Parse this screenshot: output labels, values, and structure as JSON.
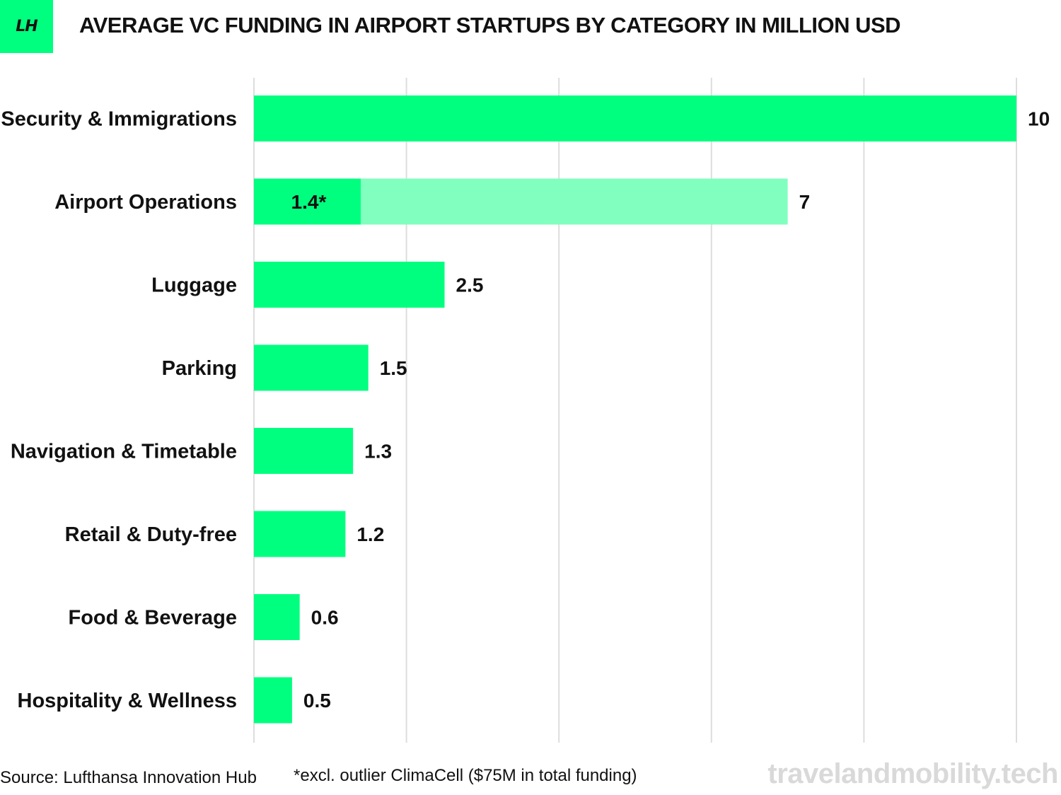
{
  "logo": {
    "text": "LH"
  },
  "title": "AVERAGE VC FUNDING IN AIRPORT STARTUPS BY CATEGORY IN MILLION USD",
  "footer": {
    "source": "Source: Lufthansa Innovation Hub",
    "note": "*excl. outlier ClimaCell ($75M in total funding)",
    "watermark": "travelandmobility.tech"
  },
  "colors": {
    "bar": "#00ff7f",
    "bar_light": "#80ffbf",
    "grid": "#dddddd",
    "text": "#111111"
  },
  "chart_data": {
    "type": "bar",
    "orientation": "horizontal",
    "categories": [
      "Security & Immigrations",
      "Airport Operations",
      "Luggage",
      "Parking",
      "Navigation & Timetable",
      "Retail & Duty-free",
      "Food & Beverage",
      "Hospitality & Wellness"
    ],
    "values": [
      10,
      7,
      2.5,
      1.5,
      1.3,
      1.2,
      0.6,
      0.5
    ],
    "value_labels": [
      "10",
      "7",
      "2.5",
      "1.5",
      "1.3",
      "1.2",
      "0.6",
      "0.5"
    ],
    "excl_outlier": {
      "category": "Airport Operations",
      "value": 1.4,
      "label": "1.4*"
    },
    "xlim": [
      0,
      10
    ],
    "grid": true,
    "gridlines": [
      0,
      2,
      4,
      6,
      8,
      10
    ],
    "title": "AVERAGE VC FUNDING IN AIRPORT STARTUPS BY CATEGORY IN MILLION USD"
  }
}
